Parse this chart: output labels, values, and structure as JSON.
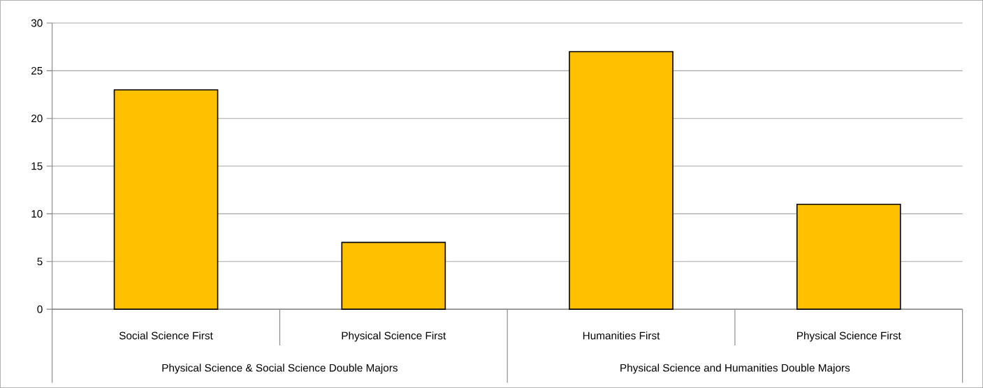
{
  "chart_data": {
    "type": "bar",
    "categories": [
      "Social Science First",
      "Physical Science First",
      "Humanities First",
      "Physical Science First"
    ],
    "values": [
      23,
      7,
      27,
      11
    ],
    "color": "#ffc000",
    "annotations": [
      "Physical Science & Social Science Double Majors",
      "Physical Science and Humanities Double Majors"
    ],
    "ylim": [
      0,
      30
    ],
    "yticks": [
      0,
      5,
      10,
      15,
      20,
      25,
      30
    ],
    "grid": "y"
  }
}
